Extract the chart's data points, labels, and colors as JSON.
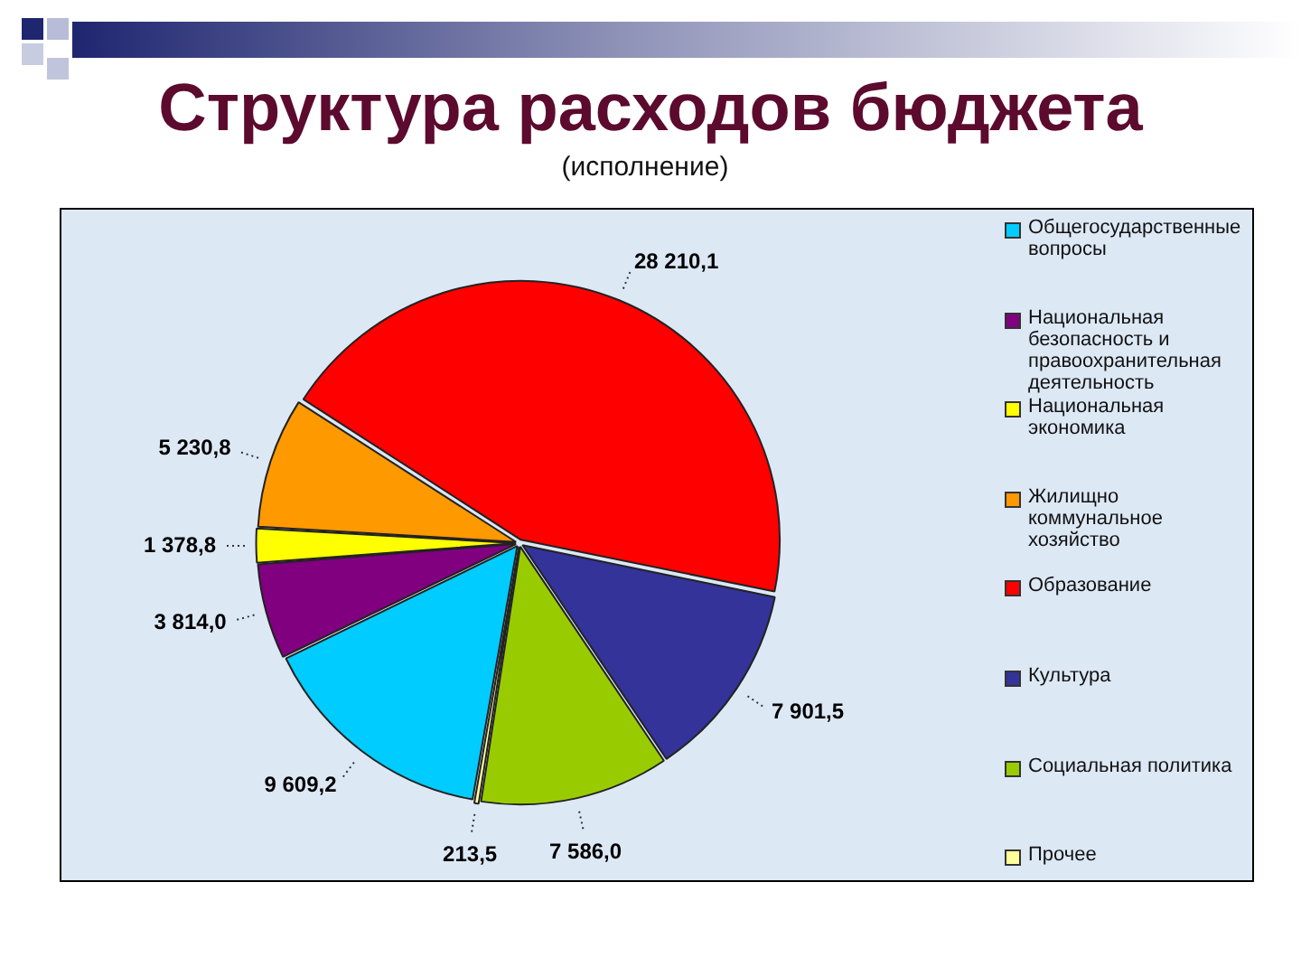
{
  "chart_data": {
    "type": "pie",
    "title": "Структура расходов бюджета",
    "subtitle": "(исполнение)",
    "categories": [
      "Общегосударственные вопросы",
      "Национальная безопасность и правоохранительная деятельность",
      "Национальная экономика",
      "Жилищно коммунальное хозяйство",
      "Образование",
      "Культура",
      "Социальная политика",
      "Прочее"
    ],
    "values": [
      9609.2,
      3814.0,
      1378.8,
      5230.8,
      28210.1,
      7901.5,
      7586.0,
      213.5
    ],
    "value_labels": [
      "9 609,2",
      "3 814,0",
      "1 378,8",
      "5 230,8",
      "28 210,1",
      "7 901,5",
      "7 586,0",
      "213,5"
    ],
    "colors": [
      "#00ccff",
      "#800080",
      "#ffff00",
      "#ff9900",
      "#ff0000",
      "#333399",
      "#99cc00",
      "#ffff99"
    ],
    "legend": "right"
  }
}
